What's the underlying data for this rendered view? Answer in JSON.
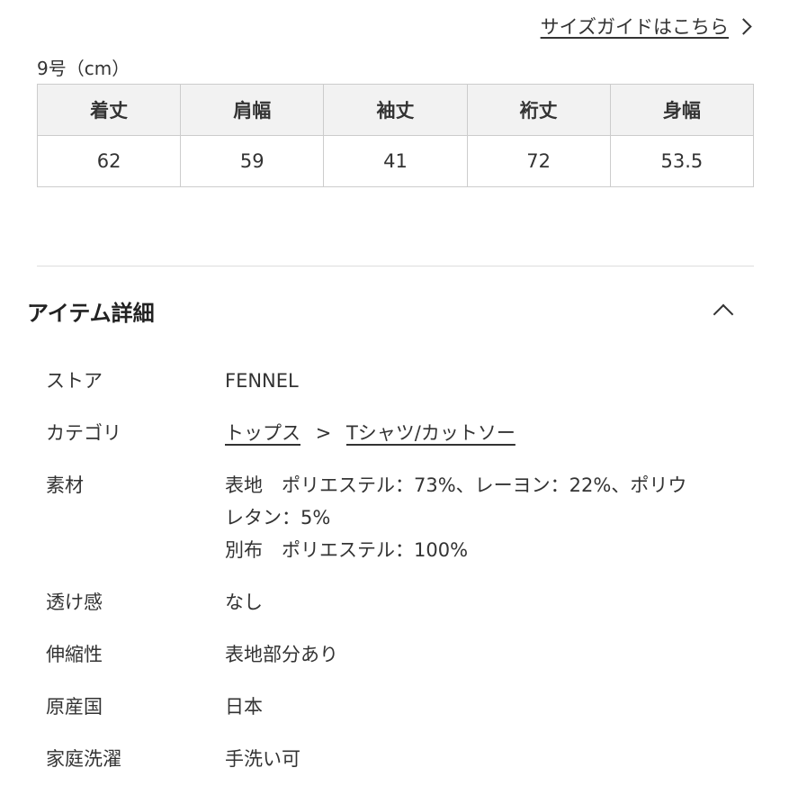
{
  "size_guide_link": "サイズガイドはこちら",
  "size_label": "9号（cm）",
  "size_table": {
    "headers": [
      "着丈",
      "肩幅",
      "袖丈",
      "裄丈",
      "身幅"
    ],
    "values": [
      "62",
      "59",
      "41",
      "72",
      "53.5"
    ]
  },
  "details": {
    "title": "アイテム詳細",
    "store": {
      "label": "ストア",
      "value": "FENNEL"
    },
    "category": {
      "label": "カテゴリ",
      "crumb1": "トップス",
      "separator": ">",
      "crumb2": "Tシャツ/カットソー"
    },
    "material": {
      "label": "素材",
      "line1": "表地　ポリエステル：73%、レーヨン：22%、ポリウ",
      "line2": "レタン：5%",
      "line3": "別布　ポリエステル：100%"
    },
    "transparency": {
      "label": "透け感",
      "value": "なし"
    },
    "stretch": {
      "label": "伸縮性",
      "value": "表地部分あり"
    },
    "origin": {
      "label": "原産国",
      "value": "日本"
    },
    "washing": {
      "label": "家庭洗濯",
      "value": "手洗い可"
    }
  }
}
